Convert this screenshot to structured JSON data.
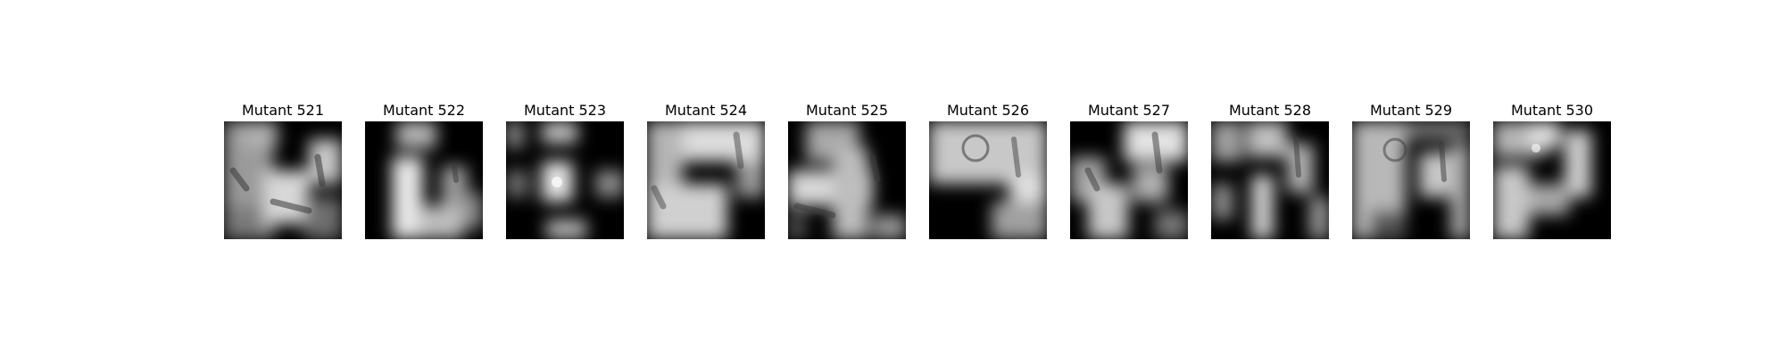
{
  "figure": {
    "panels": [
      {
        "title": "Mutant 521"
      },
      {
        "title": "Mutant 522"
      },
      {
        "title": "Mutant 523"
      },
      {
        "title": "Mutant 524"
      },
      {
        "title": "Mutant 525"
      },
      {
        "title": "Mutant 526"
      },
      {
        "title": "Mutant 527"
      },
      {
        "title": "Mutant 528"
      },
      {
        "title": "Mutant 529"
      },
      {
        "title": "Mutant 530"
      }
    ]
  }
}
